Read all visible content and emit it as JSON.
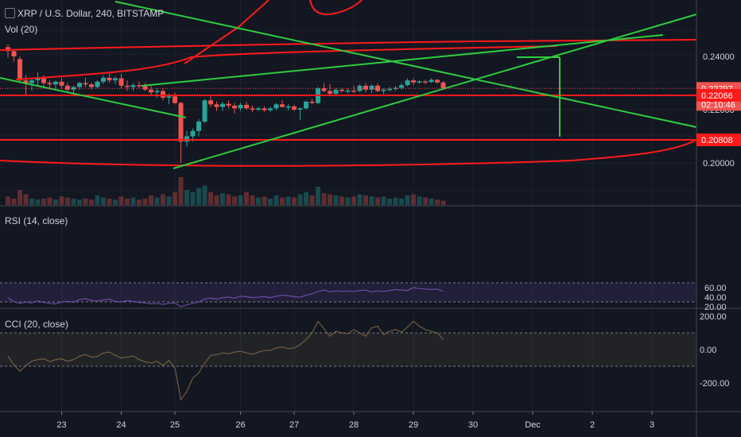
{
  "header": {
    "symbol_line": "XRP / U.S. Dollar, 240, BITSTAMP",
    "volume_label": "Vol (20)",
    "rsi_label": "RSI (14, close)",
    "cci_label": "CCI (20, close)"
  },
  "price_axis": {
    "ticks": [
      "0.24000",
      "0.22000",
      "0.21000",
      "0.20000"
    ],
    "tags": {
      "last_price": "0.22797",
      "countdown": "02:10:46",
      "level_1": "0.22066",
      "level_2": "0.20808"
    }
  },
  "rsi_axis": {
    "ticks": [
      "60.00",
      "40.00",
      "20.00"
    ]
  },
  "cci_axis": {
    "ticks": [
      "200.00",
      "0.00",
      "-200.00"
    ]
  },
  "time_axis": {
    "labels": [
      "23",
      "24",
      "25",
      "26",
      "27",
      "28",
      "29",
      "30",
      "Dec",
      "2",
      "3"
    ]
  },
  "colors": {
    "background": "#131722",
    "up": "#26a69a",
    "down": "#ef5350",
    "drawing_green": "#2ecc40",
    "drawing_red": "#ff1a1a",
    "rsi_band": "#7e57c2",
    "cci_band": "#9b8f5a"
  },
  "candles": [
    [
      0.2435,
      0.2445,
      0.2395,
      0.242
    ],
    [
      0.242,
      0.2425,
      0.238,
      0.24
    ],
    [
      0.239,
      0.24,
      0.2305,
      0.231
    ],
    [
      0.231,
      0.233,
      0.225,
      0.23
    ],
    [
      0.23,
      0.232,
      0.227,
      0.231
    ],
    [
      0.231,
      0.234,
      0.229,
      0.232
    ],
    [
      0.232,
      0.233,
      0.2285,
      0.23
    ],
    [
      0.23,
      0.231,
      0.228,
      0.2295
    ],
    [
      0.2295,
      0.231,
      0.2275,
      0.2305
    ],
    [
      0.2305,
      0.232,
      0.228,
      0.229
    ],
    [
      0.229,
      0.23,
      0.2265,
      0.2275
    ],
    [
      0.2275,
      0.229,
      0.226,
      0.2285
    ],
    [
      0.2285,
      0.2305,
      0.2275,
      0.23
    ],
    [
      0.23,
      0.232,
      0.2285,
      0.2295
    ],
    [
      0.2295,
      0.23,
      0.2275,
      0.2285
    ],
    [
      0.2285,
      0.231,
      0.228,
      0.2305
    ],
    [
      0.2305,
      0.233,
      0.2295,
      0.232
    ],
    [
      0.232,
      0.2335,
      0.23,
      0.231
    ],
    [
      0.231,
      0.2325,
      0.2295,
      0.2318
    ],
    [
      0.2318,
      0.2335,
      0.228,
      0.229
    ],
    [
      0.229,
      0.231,
      0.227,
      0.2285
    ],
    [
      0.2285,
      0.23,
      0.227,
      0.2292
    ],
    [
      0.2292,
      0.2305,
      0.228,
      0.2288
    ],
    [
      0.2288,
      0.23,
      0.227,
      0.2275
    ],
    [
      0.2275,
      0.229,
      0.2255,
      0.2265
    ],
    [
      0.2265,
      0.228,
      0.2245,
      0.227
    ],
    [
      0.227,
      0.228,
      0.2235,
      0.2245
    ],
    [
      0.2245,
      0.226,
      0.222,
      0.225
    ],
    [
      0.225,
      0.2265,
      0.222,
      0.2225
    ],
    [
      0.2225,
      0.223,
      0.2,
      0.208
    ],
    [
      0.208,
      0.212,
      0.206,
      0.21
    ],
    [
      0.21,
      0.213,
      0.208,
      0.212
    ],
    [
      0.212,
      0.2165,
      0.21,
      0.2155
    ],
    [
      0.2155,
      0.224,
      0.215,
      0.2235
    ],
    [
      0.2235,
      0.225,
      0.221,
      0.222
    ],
    [
      0.222,
      0.223,
      0.2195,
      0.221
    ],
    [
      0.221,
      0.223,
      0.2195,
      0.2222
    ],
    [
      0.2222,
      0.2235,
      0.2205,
      0.2215
    ],
    [
      0.2215,
      0.2225,
      0.2185,
      0.2205
    ],
    [
      0.2205,
      0.2225,
      0.2195,
      0.2218
    ],
    [
      0.2218,
      0.223,
      0.22,
      0.2205
    ],
    [
      0.2205,
      0.2215,
      0.219,
      0.22
    ],
    [
      0.22,
      0.221,
      0.2195,
      0.2205
    ],
    [
      0.2205,
      0.2212,
      0.2192,
      0.2198
    ],
    [
      0.2198,
      0.221,
      0.219,
      0.2205
    ],
    [
      0.2205,
      0.2225,
      0.2198,
      0.222
    ],
    [
      0.222,
      0.2235,
      0.2208,
      0.221
    ],
    [
      0.221,
      0.222,
      0.2198,
      0.2212
    ],
    [
      0.2212,
      0.2218,
      0.2195,
      0.22
    ],
    [
      0.22,
      0.2208,
      0.216,
      0.2205
    ],
    [
      0.2205,
      0.2235,
      0.22,
      0.223
    ],
    [
      0.223,
      0.224,
      0.222,
      0.2225
    ],
    [
      0.2225,
      0.2285,
      0.222,
      0.228
    ],
    [
      0.228,
      0.23,
      0.2265,
      0.227
    ],
    [
      0.227,
      0.2295,
      0.2255,
      0.226
    ],
    [
      0.226,
      0.228,
      0.225,
      0.2275
    ],
    [
      0.2275,
      0.2282,
      0.2265,
      0.227
    ],
    [
      0.227,
      0.228,
      0.2262,
      0.2272
    ],
    [
      0.2272,
      0.229,
      0.2262,
      0.227
    ],
    [
      0.227,
      0.2295,
      0.2265,
      0.229
    ],
    [
      0.229,
      0.23,
      0.2265,
      0.2275
    ],
    [
      0.2275,
      0.2295,
      0.2262,
      0.229
    ],
    [
      0.229,
      0.2298,
      0.2265,
      0.227
    ],
    [
      0.227,
      0.228,
      0.2258,
      0.2275
    ],
    [
      0.2275,
      0.2285,
      0.2268,
      0.2278
    ],
    [
      0.2278,
      0.229,
      0.227,
      0.2282
    ],
    [
      0.2282,
      0.23,
      0.2275,
      0.2292
    ],
    [
      0.2292,
      0.2318,
      0.2288,
      0.231
    ],
    [
      0.231,
      0.2318,
      0.2292,
      0.2302
    ],
    [
      0.2302,
      0.231,
      0.2298,
      0.2306
    ],
    [
      0.2306,
      0.2312,
      0.2296,
      0.2304
    ],
    [
      0.2304,
      0.2318,
      0.23,
      0.2312
    ],
    [
      0.2312,
      0.2315,
      0.2298,
      0.2302
    ],
    [
      0.2302,
      0.2308,
      0.2276,
      0.228
    ]
  ],
  "volume": [
    8,
    6,
    14,
    10,
    6,
    5,
    6,
    7,
    5,
    8,
    7,
    6,
    5,
    6,
    5,
    9,
    7,
    6,
    5,
    8,
    6,
    7,
    5,
    6,
    9,
    7,
    10,
    8,
    12,
    26,
    14,
    12,
    16,
    18,
    12,
    9,
    11,
    10,
    8,
    9,
    12,
    9,
    7,
    8,
    6,
    9,
    7,
    8,
    7,
    10,
    12,
    9,
    17,
    11,
    10,
    9,
    8,
    7,
    8,
    10,
    9,
    8,
    7,
    8,
    6,
    7,
    6,
    9,
    10,
    8,
    7,
    6,
    5,
    4
  ],
  "rsi": [
    38,
    31,
    27,
    30,
    28,
    32,
    29,
    27,
    26,
    30,
    31,
    29,
    35,
    37,
    33,
    32,
    34,
    36,
    31,
    30,
    33,
    31,
    29,
    28,
    26,
    27,
    25,
    27,
    28,
    20,
    24,
    27,
    30,
    36,
    38,
    36,
    39,
    40,
    38,
    42,
    41,
    39,
    40,
    41,
    39,
    42,
    44,
    43,
    41,
    40,
    44,
    47,
    52,
    55,
    51,
    53,
    52,
    53,
    52,
    54,
    55,
    51,
    53,
    52,
    54,
    56,
    55,
    54,
    60,
    58,
    57,
    56,
    57,
    52
  ],
  "cci": [
    -40,
    -90,
    -130,
    -95,
    -70,
    -60,
    -55,
    -72,
    -60,
    -55,
    -70,
    -60,
    -40,
    -30,
    -45,
    -42,
    -20,
    -15,
    -35,
    -50,
    -45,
    -38,
    -60,
    -72,
    -80,
    -70,
    -95,
    -65,
    -110,
    -300,
    -250,
    -170,
    -140,
    -80,
    -35,
    -30,
    -20,
    -25,
    -15,
    -10,
    -20,
    -28,
    -15,
    -5,
    -5,
    10,
    15,
    5,
    10,
    30,
    60,
    100,
    170,
    125,
    80,
    110,
    100,
    95,
    120,
    100,
    80,
    130,
    140,
    90,
    110,
    120,
    105,
    135,
    170,
    140,
    120,
    110,
    100,
    60
  ],
  "date_candle_index": [
    9,
    19,
    28,
    39,
    48,
    58,
    68,
    78,
    88,
    98,
    108
  ]
}
